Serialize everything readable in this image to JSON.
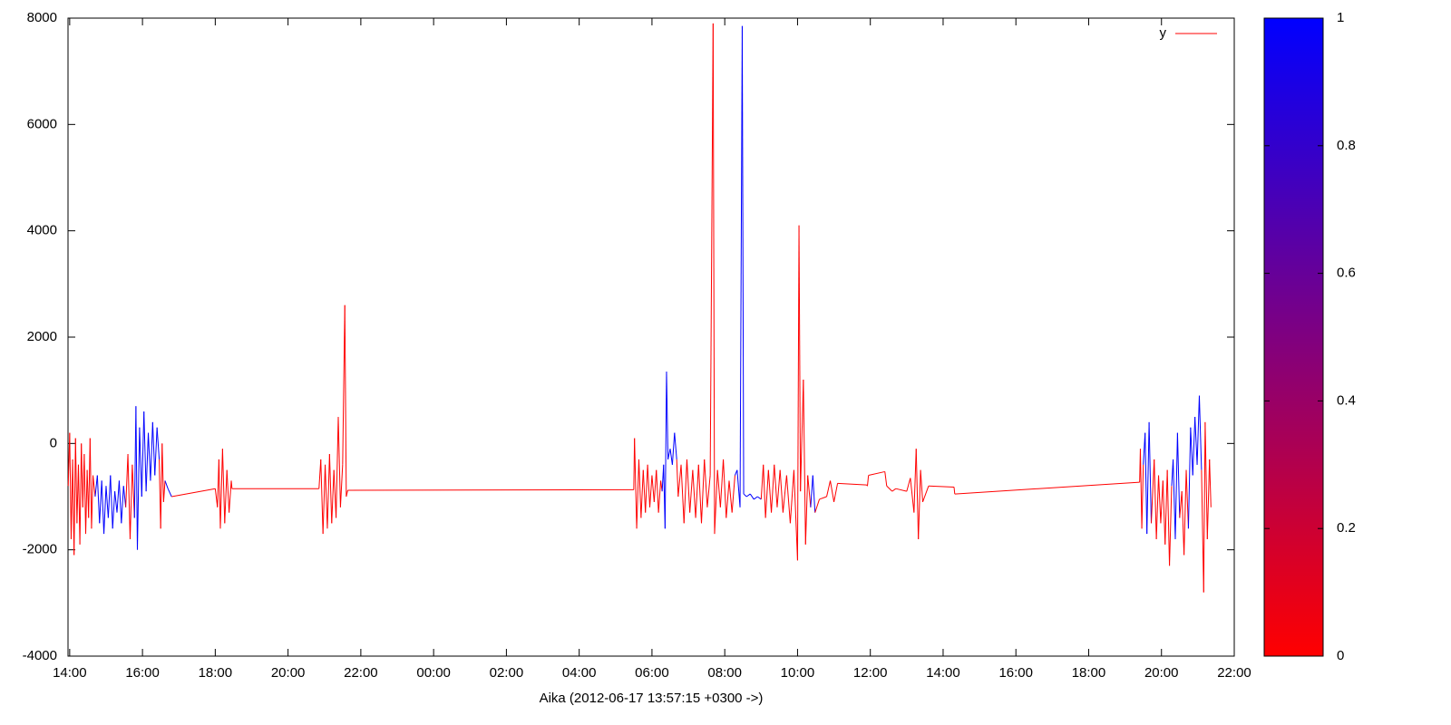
{
  "chart_data": {
    "type": "line",
    "x_label": "Aika (2012-06-17 13:57:15 +0300 ->)",
    "xlim": [
      13.954,
      46
    ],
    "xticks": [
      {
        "value": 14,
        "label": "14:00"
      },
      {
        "value": 16,
        "label": "16:00"
      },
      {
        "value": 18,
        "label": "18:00"
      },
      {
        "value": 20,
        "label": "20:00"
      },
      {
        "value": 22,
        "label": "22:00"
      },
      {
        "value": 24,
        "label": "00:00"
      },
      {
        "value": 26,
        "label": "02:00"
      },
      {
        "value": 28,
        "label": "04:00"
      },
      {
        "value": 30,
        "label": "06:00"
      },
      {
        "value": 32,
        "label": "08:00"
      },
      {
        "value": 34,
        "label": "10:00"
      },
      {
        "value": 36,
        "label": "12:00"
      },
      {
        "value": 38,
        "label": "14:00"
      },
      {
        "value": 40,
        "label": "16:00"
      },
      {
        "value": 42,
        "label": "18:00"
      },
      {
        "value": 44,
        "label": "20:00"
      },
      {
        "value": 46,
        "label": "22:00"
      }
    ],
    "ylim": [
      -4000,
      8000
    ],
    "yticks": [
      -4000,
      -2000,
      0,
      2000,
      4000,
      6000,
      8000
    ],
    "legend": "top right",
    "series": [
      {
        "name": "y",
        "color": "#ff0000",
        "x": [
          13.96,
          14.0,
          14.04,
          14.08,
          14.12,
          14.16,
          14.2,
          14.24,
          14.28,
          14.32,
          14.36,
          14.4,
          14.44,
          14.48,
          14.52,
          14.56,
          14.6,
          14.64,
          14.7,
          14.76,
          14.82,
          14.88,
          14.94,
          15.0,
          15.06,
          15.12,
          15.18,
          15.24,
          15.3,
          15.36,
          15.42,
          15.48,
          15.54,
          15.6,
          15.66,
          15.72,
          15.78,
          15.82,
          15.86,
          15.92,
          15.98,
          16.04,
          16.1,
          16.16,
          16.22,
          16.28,
          16.34,
          16.4,
          16.46,
          16.5,
          16.54,
          16.58,
          16.62,
          16.7,
          16.8,
          18.0,
          18.06,
          18.1,
          18.14,
          18.2,
          18.26,
          18.32,
          18.38,
          18.44,
          18.46,
          19.1,
          20.85,
          20.9,
          20.96,
          21.02,
          21.08,
          21.14,
          21.2,
          21.26,
          21.32,
          21.38,
          21.44,
          21.5,
          21.56,
          21.6,
          21.64,
          29.5,
          29.52,
          29.58,
          29.64,
          29.7,
          29.76,
          29.82,
          29.88,
          29.94,
          30.0,
          30.06,
          30.12,
          30.18,
          30.24,
          30.28,
          30.32,
          30.36,
          30.4,
          30.44,
          30.5,
          30.56,
          30.62,
          30.68,
          30.72,
          30.8,
          30.88,
          30.96,
          31.04,
          31.12,
          31.2,
          31.28,
          31.36,
          31.44,
          31.52,
          31.6,
          31.68,
          31.72,
          31.8,
          31.88,
          31.96,
          32.04,
          32.12,
          32.2,
          32.28,
          32.34,
          32.42,
          32.48,
          32.52,
          32.6,
          32.7,
          32.8,
          32.9,
          33.0,
          33.06,
          33.12,
          33.2,
          33.28,
          33.36,
          33.44,
          33.52,
          33.6,
          33.7,
          33.8,
          33.9,
          34.0,
          34.04,
          34.08,
          34.16,
          34.22,
          34.28,
          34.36,
          34.42,
          34.48,
          34.6,
          34.8,
          34.9,
          35.0,
          35.1,
          35.9,
          35.92,
          35.95,
          36.4,
          36.45,
          36.6,
          36.7,
          37.0,
          37.1,
          37.2,
          37.26,
          37.32,
          37.38,
          37.44,
          37.6,
          38.3,
          38.32,
          43.4,
          43.42,
          43.46,
          43.5,
          43.55,
          43.6,
          43.66,
          43.72,
          43.8,
          43.86,
          43.92,
          43.98,
          44.04,
          44.1,
          44.16,
          44.22,
          44.28,
          44.32,
          44.38,
          44.44,
          44.5,
          44.56,
          44.62,
          44.68,
          44.74,
          44.8,
          44.86,
          44.92,
          44.98,
          45.04,
          45.1,
          45.16,
          45.2,
          45.26,
          45.32,
          45.36
        ],
        "values": [
          -800,
          200,
          -1800,
          -300,
          -2100,
          100,
          -1500,
          -400,
          -1900,
          0,
          -1200,
          -200,
          -1700,
          -500,
          -1400,
          100,
          -1600,
          -600,
          -1000,
          -600,
          -1500,
          -700,
          -1700,
          -800,
          -1400,
          -600,
          -1600,
          -900,
          -1300,
          -700,
          -1500,
          -800,
          -1200,
          -200,
          -1800,
          -400,
          -1400,
          700,
          -2000,
          300,
          -1000,
          600,
          -900,
          200,
          -700,
          400,
          -600,
          300,
          -300,
          -1600,
          0,
          -1100,
          -700,
          -850,
          -1000,
          -850,
          -1200,
          -300,
          -1600,
          -100,
          -1500,
          -500,
          -1300,
          -700,
          -850,
          -850,
          -850,
          -300,
          -1700,
          -400,
          -1600,
          -200,
          -1500,
          -500,
          -1400,
          500,
          -1200,
          -400,
          2600,
          -1000,
          -880,
          -870,
          100,
          -1600,
          -300,
          -1400,
          -500,
          -1300,
          -400,
          -1200,
          -600,
          -1100,
          -500,
          -1300,
          -700,
          -900,
          -400,
          -1600,
          1350,
          -300,
          -100,
          -400,
          200,
          -300,
          -1000,
          -400,
          -1500,
          -300,
          -1300,
          -500,
          -1400,
          -400,
          -1500,
          -300,
          -1200,
          -600,
          7900,
          -1700,
          -500,
          -1200,
          -300,
          -1400,
          -700,
          -1300,
          -600,
          -500,
          -1200,
          7850,
          -950,
          -1000,
          -950,
          -1050,
          -1000,
          -1050,
          -400,
          -1400,
          -500,
          -1300,
          -400,
          -1200,
          -500,
          -1300,
          -600,
          -1500,
          -500,
          -2200,
          4100,
          -900,
          1200,
          -1900,
          -600,
          -1200,
          -600,
          -1300,
          -1050,
          -1000,
          -700,
          -1100,
          -750,
          -780,
          -800,
          -600,
          -530,
          -800,
          -900,
          -850,
          -900,
          -650,
          -1300,
          -100,
          -1800,
          -500,
          -1100,
          -800,
          -820,
          -950,
          -730,
          -100,
          -1600,
          -400,
          200,
          -1700,
          400,
          -1500,
          -300,
          -1800,
          -600,
          -1500,
          -700,
          -1900,
          -500,
          -2300,
          -800,
          -300,
          -1800,
          200,
          -1400,
          -900,
          -2100,
          -500,
          -1600,
          300,
          -600,
          500,
          -400,
          900,
          -500,
          -2800,
          400,
          -1800,
          -300,
          -1200
        ],
        "palette_values": [
          0,
          0,
          0,
          0,
          0,
          0,
          0,
          0,
          0,
          0,
          0,
          0,
          0,
          0,
          0,
          0,
          0,
          0,
          0,
          1,
          1,
          1,
          1,
          1,
          1,
          1,
          1,
          1,
          1,
          1,
          1,
          1,
          1,
          0,
          0,
          0,
          0,
          1,
          1,
          1,
          1,
          1,
          1,
          1,
          1,
          1,
          1,
          1,
          1,
          0,
          0,
          0,
          0,
          1,
          1,
          0,
          0,
          0,
          0,
          0,
          0,
          0,
          0,
          0,
          0,
          0,
          0,
          0,
          0,
          0,
          0,
          0,
          0,
          0,
          0,
          0,
          0,
          0,
          0,
          0,
          0,
          0,
          0,
          0,
          0,
          0,
          0,
          0,
          0,
          0,
          0,
          0,
          0,
          0,
          0,
          0,
          1,
          1,
          1,
          1,
          1,
          1,
          1,
          1,
          0,
          0,
          0,
          0,
          0,
          0,
          0,
          0,
          0,
          0,
          0,
          0,
          0,
          0,
          0,
          0,
          0,
          0,
          0,
          0,
          0,
          1,
          1,
          1,
          1,
          1,
          1,
          1,
          1,
          1,
          0,
          0,
          0,
          0,
          0,
          0,
          0,
          0,
          0,
          0,
          0,
          0,
          0,
          0,
          0,
          0,
          0,
          0,
          1,
          1,
          0,
          0,
          0,
          0,
          0,
          0,
          0,
          0,
          0,
          0,
          0,
          0,
          0,
          0,
          0,
          0,
          0,
          0,
          0,
          0,
          0,
          0,
          0,
          0,
          0,
          0,
          1,
          1,
          1,
          1,
          0,
          0,
          0,
          0,
          0,
          0,
          0,
          0,
          0,
          1,
          1,
          1,
          1,
          0,
          0,
          0,
          0,
          1,
          1,
          1,
          1,
          1,
          1,
          0,
          0,
          0,
          0,
          0
        ]
      }
    ],
    "colorbar": {
      "palette": [
        "#ff0000",
        "#0000ff"
      ],
      "lim": [
        0,
        1
      ],
      "ticks": [
        0,
        0.2,
        0.4,
        0.6,
        0.8,
        1
      ]
    }
  }
}
